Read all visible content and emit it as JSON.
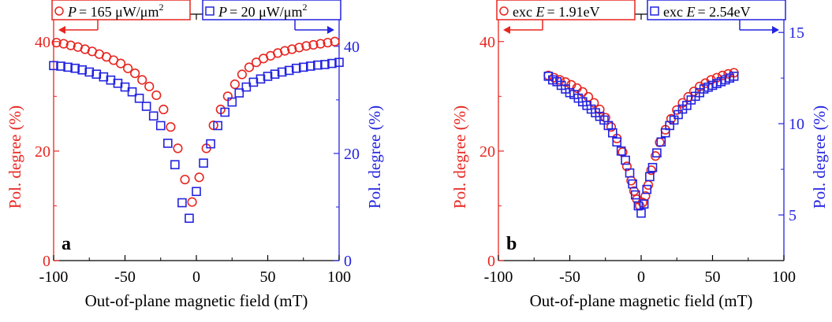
{
  "chart_data": [
    {
      "type": "scatter",
      "panel_label": "a",
      "xlabel": "Out-of-plane magnetic field (mT)",
      "ylabel_left": "Pol. degree (%)",
      "ylabel_right": "Pol. degree (%)",
      "xlim": [
        -100,
        100
      ],
      "ylim_left": [
        0,
        45
      ],
      "ylim_right": [
        0,
        46
      ],
      "xticks": [
        -100,
        -50,
        0,
        50,
        100
      ],
      "xtick_labels": [
        "-100",
        "-50",
        "0",
        "50",
        "100"
      ],
      "yticks_left": [
        0,
        20,
        40
      ],
      "ytick_labels_left": [
        "0",
        "20",
        "40"
      ],
      "yticks_right": [
        0,
        20,
        40
      ],
      "ytick_labels_right": [
        "0",
        "20",
        "40"
      ],
      "legend_left": {
        "marker": "circle",
        "symbol": "P",
        "text": "= 165 μW/μm",
        "sup": "2",
        "color": "#e8251f",
        "arrow": "left"
      },
      "legend_right": {
        "marker": "square",
        "symbol": "P",
        "text": "= 20 μW/μm",
        "sup": "2",
        "color": "#2323e0",
        "arrow": "right"
      },
      "series": [
        {
          "name": "P = 165 μW/μm2",
          "marker": "circle",
          "axis": "left",
          "color": "#e8251f",
          "x": [
            -98,
            -93,
            -88,
            -83,
            -78,
            -73,
            -68,
            -63,
            -58,
            -53,
            -48,
            -43,
            -38,
            -33,
            -28,
            -23,
            -18,
            -13,
            -8,
            -3,
            2,
            7,
            12,
            17,
            22,
            27,
            32,
            37,
            42,
            47,
            52,
            57,
            62,
            67,
            72,
            77,
            82,
            87,
            92,
            97
          ],
          "y": [
            39.8,
            39.6,
            39.3,
            39.0,
            38.6,
            38.2,
            37.7,
            37.2,
            36.6,
            36.0,
            35.1,
            34.2,
            33.0,
            31.8,
            30.2,
            27.6,
            24.4,
            20.5,
            14.8,
            10.7,
            15.2,
            20.5,
            24.7,
            27.6,
            30.0,
            32.2,
            34.0,
            35.3,
            36.2,
            36.9,
            37.4,
            37.9,
            38.3,
            38.6,
            38.9,
            39.2,
            39.4,
            39.6,
            39.8,
            40.0
          ]
        },
        {
          "name": "P = 20 μW/μm2",
          "marker": "square",
          "axis": "right",
          "color": "#2323e0",
          "x": [
            -100,
            -95,
            -90,
            -85,
            -80,
            -75,
            -70,
            -65,
            -60,
            -55,
            -50,
            -45,
            -40,
            -35,
            -30,
            -25,
            -20,
            -15,
            -10,
            -5,
            0,
            5,
            10,
            15,
            20,
            25,
            30,
            35,
            40,
            45,
            50,
            55,
            60,
            65,
            70,
            75,
            80,
            85,
            90,
            95,
            100
          ],
          "y": [
            36.4,
            36.3,
            36.1,
            35.9,
            35.6,
            35.2,
            34.8,
            34.3,
            33.7,
            33.1,
            32.4,
            31.5,
            30.3,
            28.8,
            27.0,
            25.2,
            21.9,
            17.9,
            10.8,
            7.9,
            12.9,
            18.2,
            21.8,
            25.2,
            27.7,
            29.6,
            31.3,
            32.4,
            33.3,
            33.9,
            34.4,
            34.8,
            35.2,
            35.5,
            35.9,
            36.1,
            36.3,
            36.5,
            36.6,
            36.8,
            37.0
          ]
        }
      ]
    },
    {
      "type": "scatter",
      "panel_label": "b",
      "xlabel": "Out-of-plane magnetic field (mT)",
      "ylabel_left": "Pol. degree (%)",
      "ylabel_right": "Pol. degree (%)",
      "xlim": [
        -100,
        100
      ],
      "ylim_left": [
        0,
        45
      ],
      "ylim_right": [
        2.5,
        16.0
      ],
      "xticks": [
        -100,
        -50,
        0,
        50,
        100
      ],
      "xtick_labels": [
        "-100",
        "-50",
        "0",
        "50",
        "100"
      ],
      "yticks_left": [
        0,
        20,
        40
      ],
      "ytick_labels_left": [
        "0",
        "20",
        "40"
      ],
      "yticks_right": [
        5,
        10,
        15
      ],
      "ytick_labels_right": [
        "5",
        "10",
        "15"
      ],
      "legend_left": {
        "marker": "circle",
        "prefix": "exc ",
        "symbol": "E",
        "text": "= 1.91eV",
        "sup": "",
        "color": "#e8251f",
        "arrow": "left"
      },
      "legend_right": {
        "marker": "square",
        "prefix": "exc ",
        "symbol": "E",
        "text": "= 2.54eV",
        "sup": "",
        "color": "#2323e0",
        "arrow": "right"
      },
      "series": [
        {
          "name": "exc E = 1.91eV",
          "marker": "circle",
          "axis": "left",
          "color": "#e8251f",
          "x": [
            -65,
            -61,
            -57,
            -53,
            -49,
            -45,
            -41,
            -37,
            -33,
            -29,
            -25,
            -21,
            -17,
            -13,
            -10,
            -7,
            -5,
            -3,
            -1,
            1,
            3,
            5,
            7,
            10,
            13,
            17,
            21,
            25,
            29,
            33,
            37,
            41,
            45,
            49,
            53,
            57,
            61,
            65
          ],
          "y": [
            33.8,
            33.4,
            33.0,
            32.6,
            32.1,
            31.5,
            30.8,
            29.9,
            28.8,
            27.6,
            26.1,
            24.4,
            22.3,
            19.8,
            17.2,
            14.6,
            12.7,
            11.2,
            10.0,
            10.6,
            11.8,
            13.8,
            16.5,
            19.1,
            21.6,
            23.9,
            25.9,
            27.5,
            28.8,
            29.9,
            30.9,
            31.8,
            32.4,
            33.0,
            33.4,
            33.8,
            34.1,
            34.3
          ]
        },
        {
          "name": "exc E = 2.54eV",
          "marker": "square",
          "axis": "right",
          "color": "#2323e0",
          "x": [
            -65,
            -62,
            -59,
            -56,
            -53,
            -50,
            -47,
            -44,
            -41,
            -38,
            -35,
            -32,
            -29,
            -26,
            -23,
            -20,
            -17,
            -14,
            -11,
            -8,
            -6,
            -4,
            -2,
            0,
            2,
            4,
            6,
            8,
            11,
            14,
            17,
            20,
            23,
            26,
            29,
            32,
            35,
            38,
            41,
            44,
            47,
            50,
            53,
            56,
            59,
            62,
            65
          ],
          "y": [
            12.6,
            12.4,
            12.3,
            12.1,
            11.9,
            11.7,
            11.6,
            11.4,
            11.2,
            11.0,
            10.8,
            10.6,
            10.4,
            10.2,
            9.9,
            9.5,
            9.0,
            8.5,
            8.0,
            7.3,
            6.7,
            6.1,
            5.5,
            5.1,
            5.6,
            6.4,
            7.1,
            7.6,
            8.4,
            9.0,
            9.5,
            9.9,
            10.2,
            10.5,
            10.8,
            11.0,
            11.3,
            11.5,
            11.7,
            11.9,
            12.0,
            12.1,
            12.2,
            12.3,
            12.4,
            12.5,
            12.6
          ]
        }
      ]
    }
  ]
}
